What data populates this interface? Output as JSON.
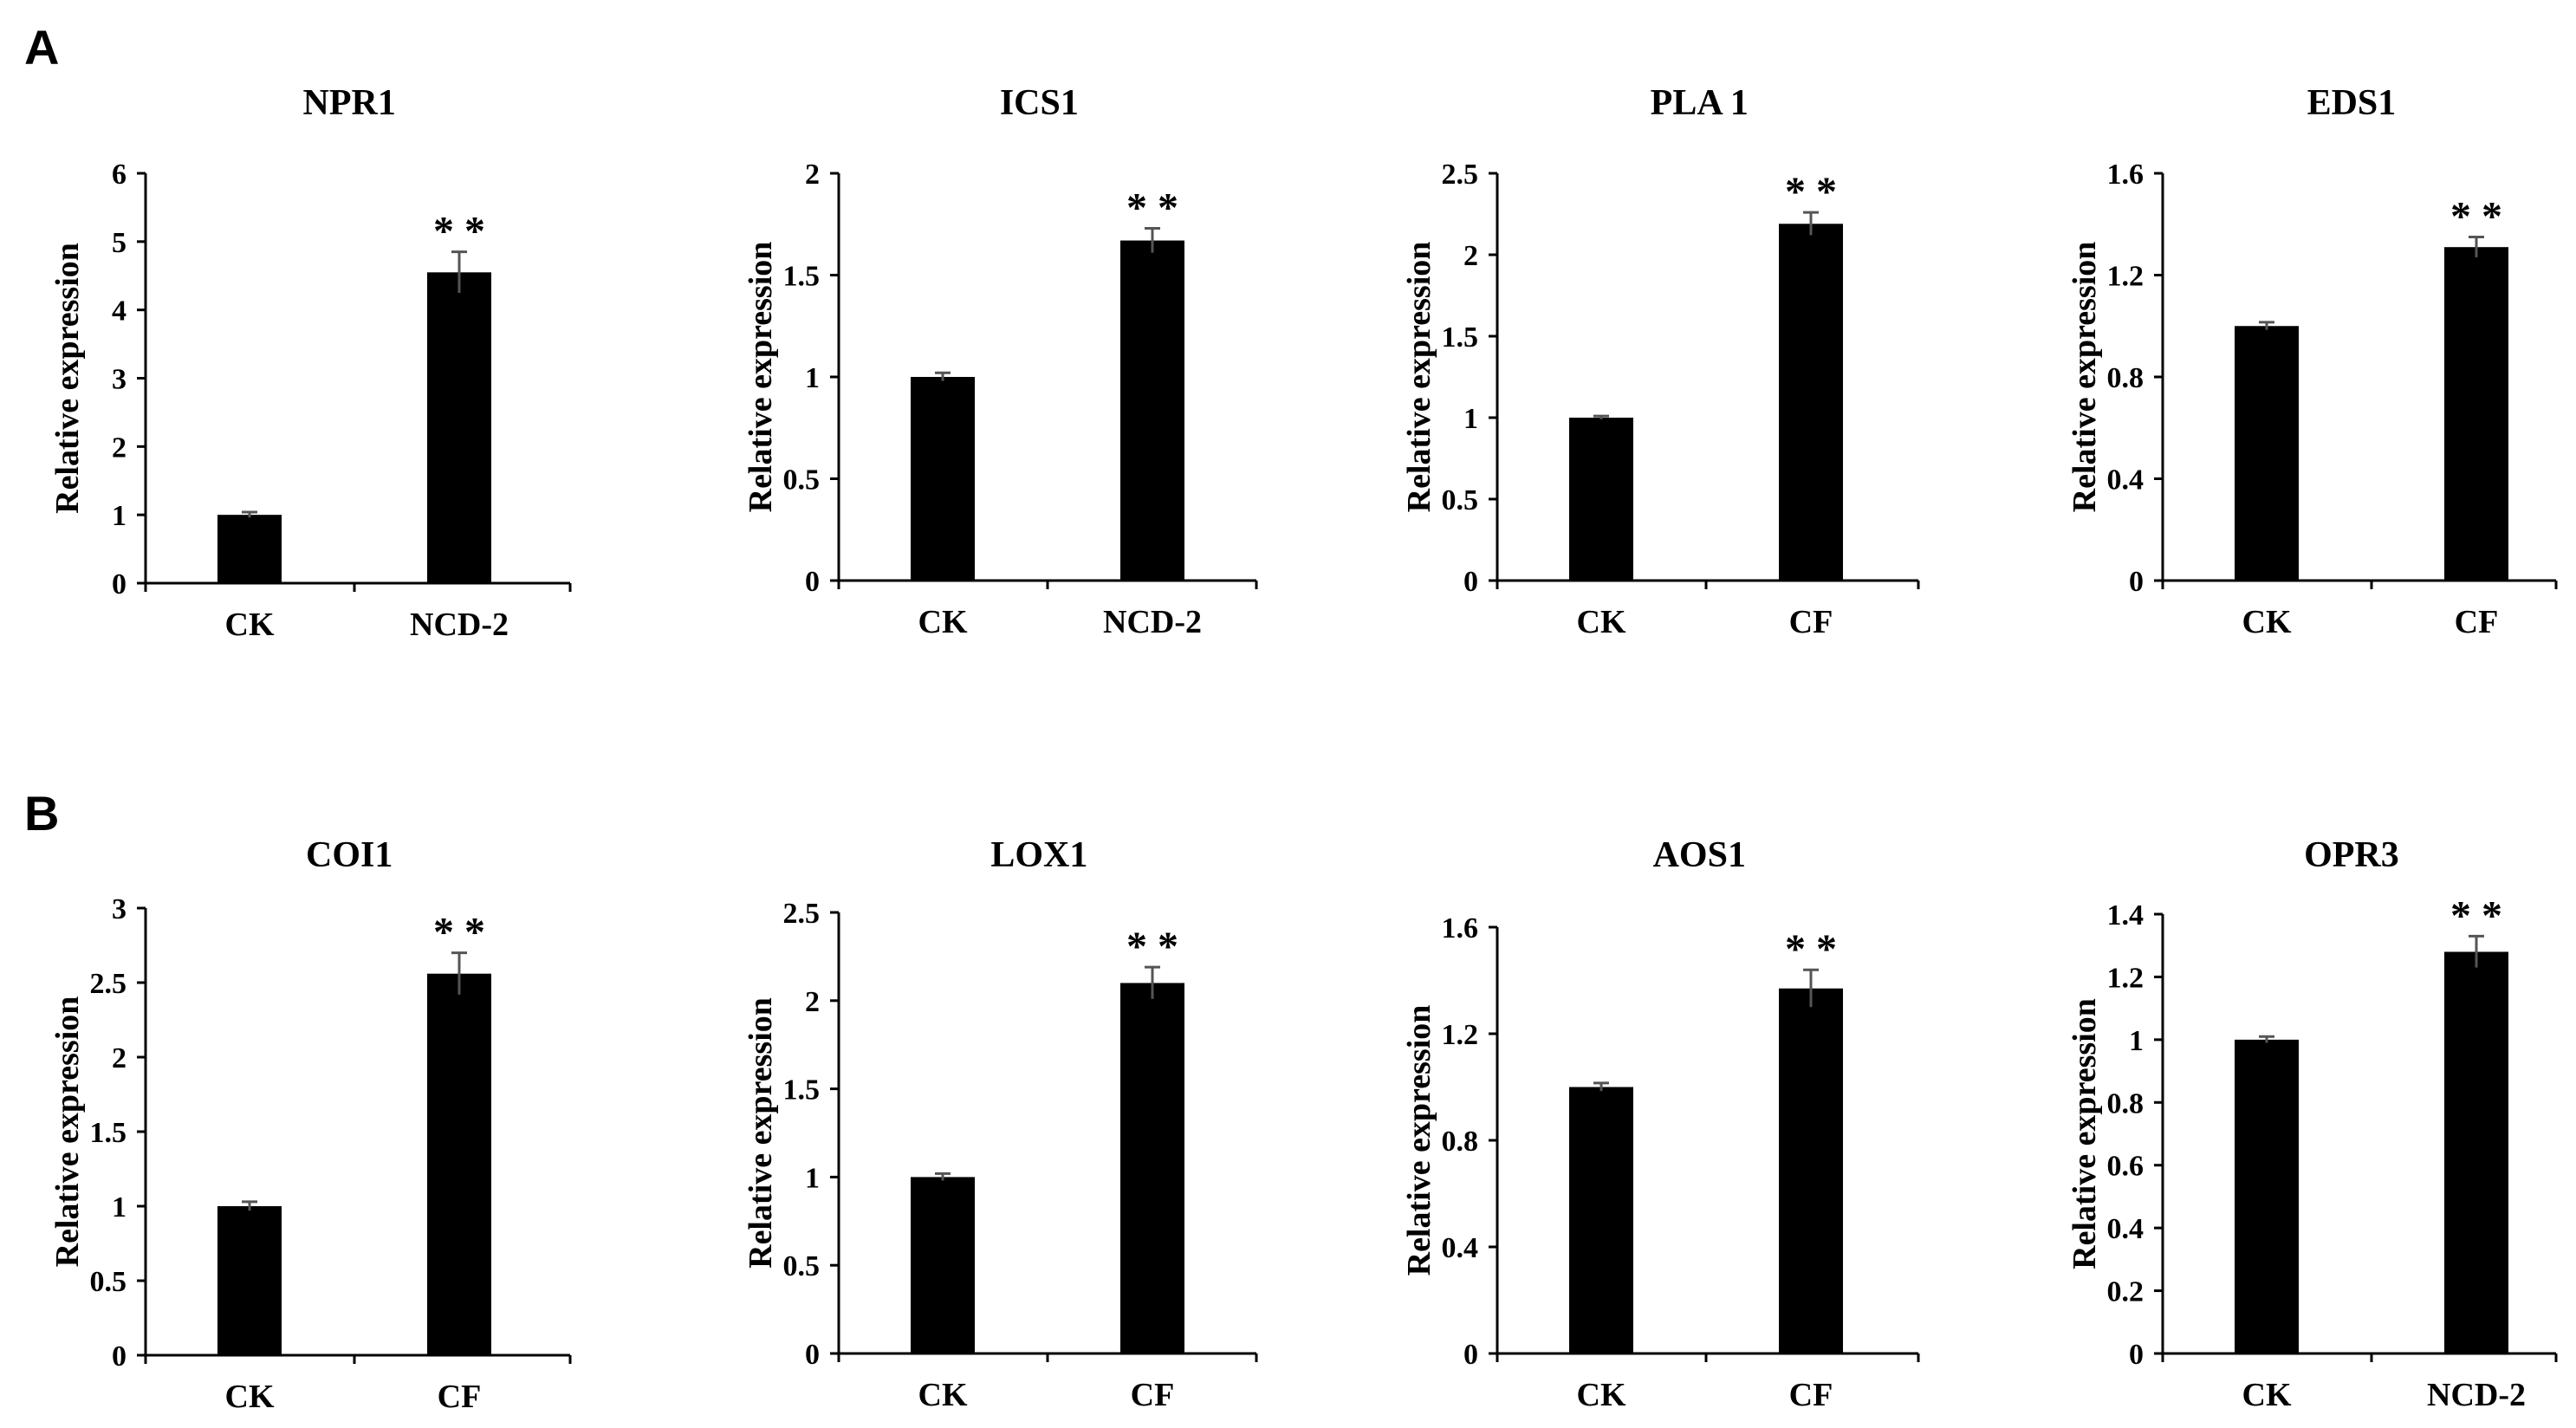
{
  "panels": [
    "A",
    "B"
  ],
  "chart_data": [
    {
      "type": "bar",
      "title": "NPR1",
      "ylabel": "Relative expression",
      "categories": [
        "CK",
        "NCD-2"
      ],
      "values": [
        1.0,
        4.55
      ],
      "errors": [
        0.04,
        0.3
      ],
      "ylim": [
        0,
        6
      ],
      "yticks": [
        "0",
        "1",
        "2",
        "3",
        "4",
        "5",
        "6"
      ],
      "significance": "* *"
    },
    {
      "type": "bar",
      "title": "ICS1",
      "ylabel": "Relative expression",
      "categories": [
        "CK",
        "NCD-2"
      ],
      "values": [
        1.0,
        1.67
      ],
      "errors": [
        0.02,
        0.06
      ],
      "ylim": [
        0,
        2
      ],
      "yticks": [
        "0",
        "0.5",
        "1",
        "1.5",
        "2"
      ],
      "significance": "* *"
    },
    {
      "type": "bar",
      "title": "PLA 1",
      "ylabel": "Relative expression",
      "categories": [
        "CK",
        "CF"
      ],
      "values": [
        1.0,
        2.19
      ],
      "errors": [
        0.01,
        0.07
      ],
      "ylim": [
        0,
        2.5
      ],
      "yticks": [
        "0",
        "0.5",
        "1",
        "1.5",
        "2",
        "2.5"
      ],
      "significance": "* *"
    },
    {
      "type": "bar",
      "title": "EDS1",
      "ylabel": "Relative expression",
      "categories": [
        "CK",
        "CF"
      ],
      "values": [
        1.0,
        1.31
      ],
      "errors": [
        0.015,
        0.04
      ],
      "ylim": [
        0,
        1.6
      ],
      "yticks": [
        "0",
        "0.4",
        "0.8",
        "1.2",
        "1.6"
      ],
      "significance": "* *"
    },
    {
      "type": "bar",
      "title": "COI1",
      "ylabel": "Relative expression",
      "categories": [
        "CK",
        "CF"
      ],
      "values": [
        1.0,
        2.56
      ],
      "errors": [
        0.03,
        0.14
      ],
      "ylim": [
        0,
        3
      ],
      "yticks": [
        "0",
        "0.5",
        "1",
        "1.5",
        "2",
        "2.5",
        "3"
      ],
      "significance": "* *"
    },
    {
      "type": "bar",
      "title": "LOX1",
      "ylabel": "Relative expression",
      "categories": [
        "CK",
        "CF"
      ],
      "values": [
        1.0,
        2.1
      ],
      "errors": [
        0.02,
        0.09
      ],
      "ylim": [
        0,
        2.5
      ],
      "yticks": [
        "0",
        "0.5",
        "1",
        "1.5",
        "2",
        "2.5"
      ],
      "significance": "* *"
    },
    {
      "type": "bar",
      "title": "AOS1",
      "ylabel": "Relative expression",
      "categories": [
        "CK",
        "CF"
      ],
      "values": [
        1.0,
        1.37
      ],
      "errors": [
        0.015,
        0.07
      ],
      "ylim": [
        0,
        1.6
      ],
      "yticks": [
        "0",
        "0.4",
        "0.8",
        "1.2",
        "1.6"
      ],
      "significance": "* *"
    },
    {
      "type": "bar",
      "title": "OPR3",
      "ylabel": "Relative expression",
      "categories": [
        "CK",
        "NCD-2"
      ],
      "values": [
        1.0,
        1.28
      ],
      "errors": [
        0.01,
        0.05
      ],
      "ylim": [
        0,
        1.4
      ],
      "yticks": [
        "0",
        "0.2",
        "0.4",
        "0.6",
        "0.8",
        "1",
        "1.2",
        "1.4"
      ],
      "significance": "* *"
    }
  ]
}
